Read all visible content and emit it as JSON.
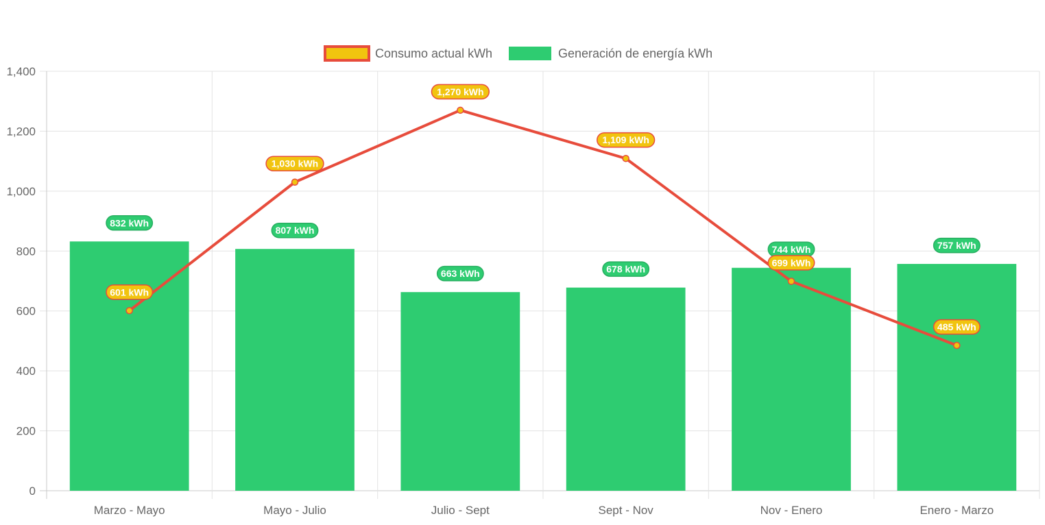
{
  "chart_data": {
    "type": "bar",
    "categories": [
      "Marzo - Mayo",
      "Mayo - Julio",
      "Julio - Sept",
      "Sept - Nov",
      "Nov - Enero",
      "Enero - Marzo"
    ],
    "series": [
      {
        "name": "Consumo actual kWh",
        "type": "line",
        "values": [
          601,
          1030,
          1270,
          1109,
          699,
          485
        ],
        "labels": [
          "601 kWh",
          "1,030 kWh",
          "1,270 kWh",
          "1,109 kWh",
          "699 kWh",
          "485 kWh"
        ],
        "color": "#e74c3c",
        "fill_color": "#f1c40f"
      },
      {
        "name": "Generación de energía kWh",
        "type": "bar",
        "values": [
          832,
          807,
          663,
          678,
          744,
          757
        ],
        "labels": [
          "832 kWh",
          "807 kWh",
          "663 kWh",
          "678 kWh",
          "744 kWh",
          "757 kWh"
        ],
        "color": "#2ecc71"
      }
    ],
    "ylim": [
      0,
      1400
    ],
    "yticks": [
      0,
      200,
      400,
      600,
      800,
      1000,
      1200,
      1400
    ],
    "ytick_labels": [
      "0",
      "200",
      "400",
      "600",
      "800",
      "1,000",
      "1,200",
      "1,400"
    ],
    "title": "",
    "xlabel": "",
    "ylabel": "",
    "grid": true,
    "legend_position": "top"
  }
}
